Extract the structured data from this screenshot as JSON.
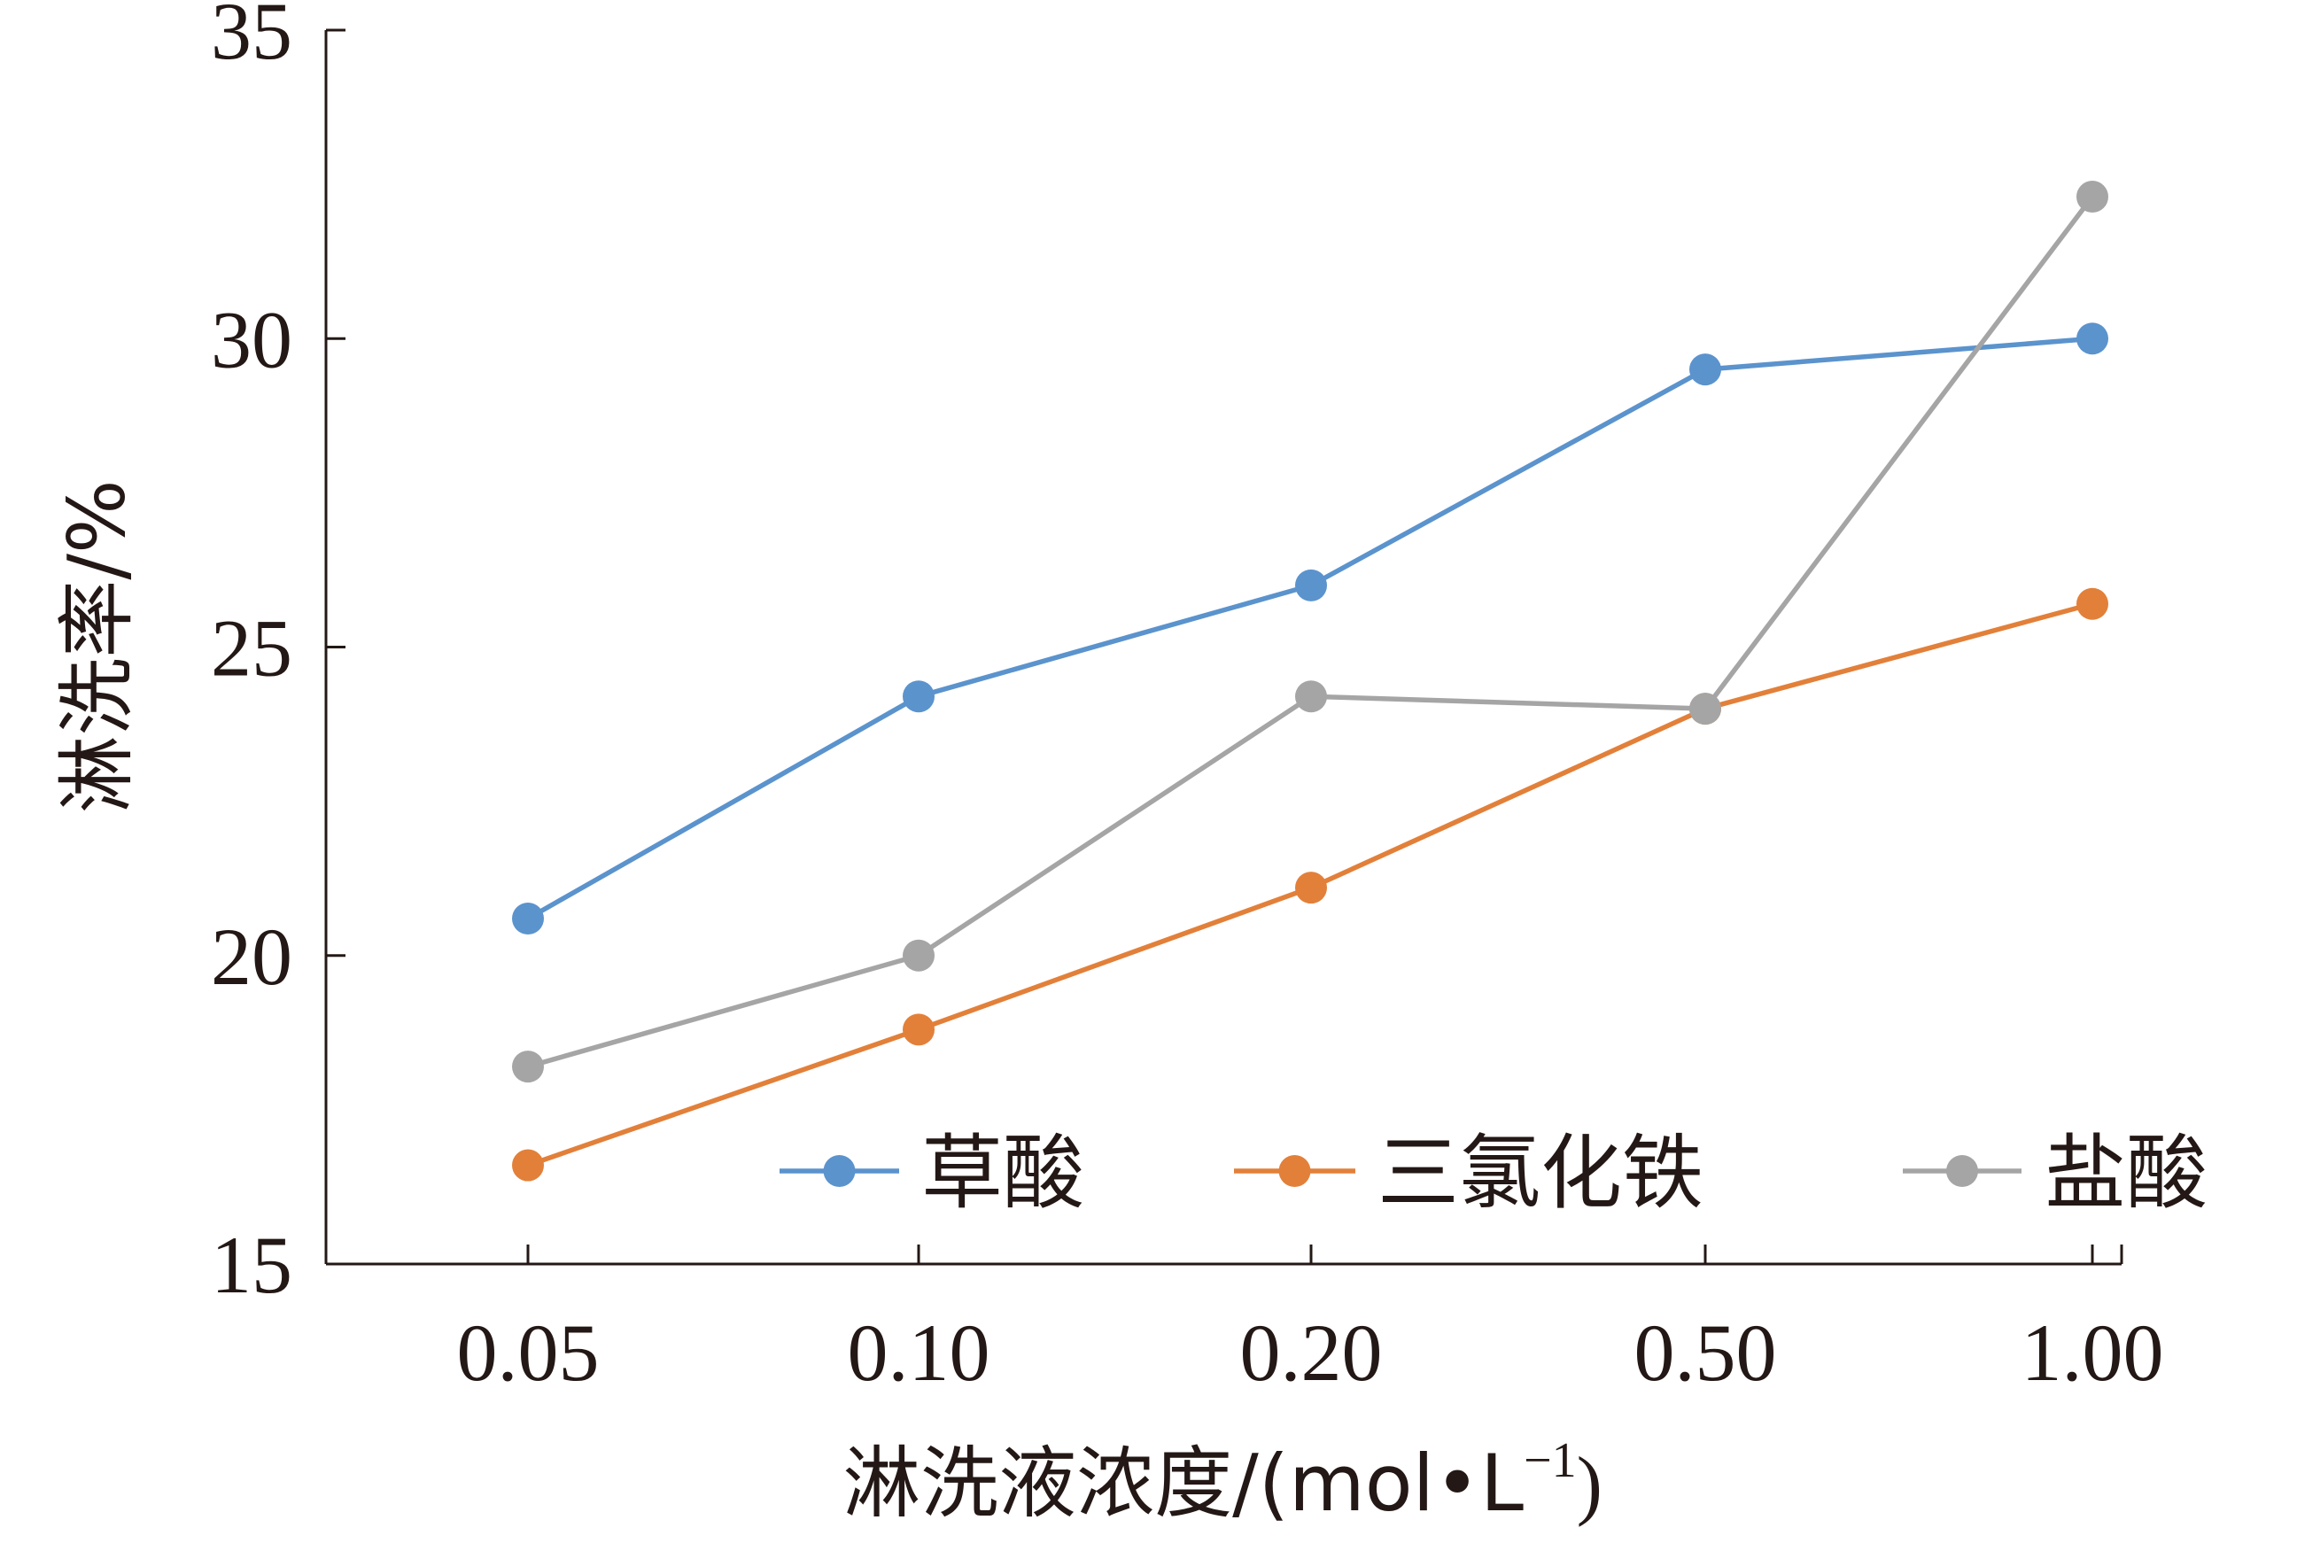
{
  "chart_data": {
    "type": "line",
    "categories": [
      "0.05",
      "0.10",
      "0.20",
      "0.50",
      "1.00"
    ],
    "ylim": [
      15,
      35
    ],
    "yticks": [
      "15",
      "20",
      "25",
      "30",
      "35"
    ],
    "ylabel": "淋洗率/%",
    "xlabel": {
      "main": "淋洗液浓度/(mol•L",
      "superscript": "−1",
      "close": ")"
    },
    "grid": false,
    "legend_position": "bottom-right",
    "series": [
      {
        "name": "草酸",
        "color": "#5B93CD",
        "values": [
          20.6,
          24.2,
          26.0,
          29.5,
          30.0
        ]
      },
      {
        "name": "三氯化铁",
        "color": "#E2803A",
        "values": [
          16.6,
          18.8,
          21.1,
          24.0,
          25.7
        ]
      },
      {
        "name": "盐酸",
        "color": "#A5A5A5",
        "values": [
          18.2,
          20.0,
          24.2,
          24.0,
          32.3
        ]
      }
    ]
  }
}
